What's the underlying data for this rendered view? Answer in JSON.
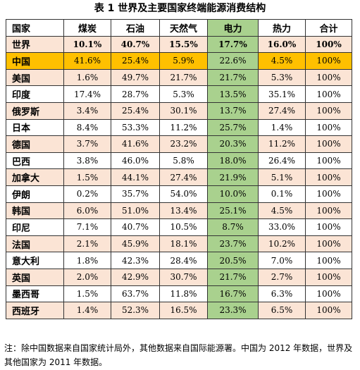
{
  "title": "表 1  世界及主要国家终端能源消费结构",
  "columns": [
    "国家",
    "煤炭",
    "石油",
    "天然气",
    "电力",
    "热力",
    "合计"
  ],
  "rows": [
    {
      "name": "世界",
      "values": [
        "10.1%",
        "40.7%",
        "15.5%",
        "17.7%",
        "16.0%",
        "100%"
      ]
    },
    {
      "name": "中国",
      "values": [
        "41.6%",
        "25.4%",
        "5.9%",
        "22.6%",
        "4.5%",
        "100%"
      ]
    },
    {
      "name": "美国",
      "values": [
        "1.6%",
        "49.7%",
        "21.7%",
        "21.7%",
        "5.3%",
        "100%"
      ]
    },
    {
      "name": "印度",
      "values": [
        "17.4%",
        "28.7%",
        "5.3%",
        "13.5%",
        "35.1%",
        "100%"
      ]
    },
    {
      "name": "俄罗斯",
      "values": [
        "3.4%",
        "25.4%",
        "30.1%",
        "13.7%",
        "27.4%",
        "100%"
      ]
    },
    {
      "name": "日本",
      "values": [
        "8.4%",
        "53.3%",
        "11.2%",
        "25.7%",
        "1.4%",
        "100%"
      ]
    },
    {
      "name": "德国",
      "values": [
        "3.7%",
        "41.6%",
        "23.2%",
        "20.3%",
        "11.2%",
        "100%"
      ]
    },
    {
      "name": "巴西",
      "values": [
        "3.8%",
        "46.0%",
        "5.8%",
        "18.0%",
        "26.4%",
        "100%"
      ]
    },
    {
      "name": "加拿大",
      "values": [
        "1.5%",
        "44.1%",
        "27.4%",
        "21.9%",
        "5.1%",
        "100%"
      ]
    },
    {
      "name": "伊朗",
      "values": [
        "0.2%",
        "35.7%",
        "54.0%",
        "10.0%",
        "0.1%",
        "100%"
      ]
    },
    {
      "name": "韩国",
      "values": [
        "6.0%",
        "51.0%",
        "13.4%",
        "25.1%",
        "4.5%",
        "100%"
      ]
    },
    {
      "name": "印尼",
      "values": [
        "7.1%",
        "40.7%",
        "10.5%",
        "8.7%",
        "33.0%",
        "100%"
      ]
    },
    {
      "name": "法国",
      "values": [
        "2.1%",
        "45.9%",
        "18.1%",
        "23.7%",
        "10.2%",
        "100%"
      ]
    },
    {
      "name": "意大利",
      "values": [
        "1.8%",
        "42.3%",
        "28.4%",
        "20.5%",
        "7.0%",
        "100%"
      ]
    },
    {
      "name": "英国",
      "values": [
        "2.0%",
        "42.9%",
        "30.7%",
        "21.7%",
        "2.7%",
        "100%"
      ]
    },
    {
      "name": "墨西哥",
      "values": [
        "1.5%",
        "63.7%",
        "11.8%",
        "16.7%",
        "6.3%",
        "100%"
      ]
    },
    {
      "name": "西班牙",
      "values": [
        "1.4%",
        "52.3%",
        "16.5%",
        "23.3%",
        "6.5%",
        "100%"
      ]
    }
  ],
  "note": "注：除中国数据来自国家统计局外，其他数据来自国际能源署。中国为 2012 年数据，世界及其他国家为 2011 年数据。",
  "colors": {
    "highlight_row": "#ffc000",
    "electricity_column": "#a9d18e",
    "stripe": "#fbe4d5"
  }
}
